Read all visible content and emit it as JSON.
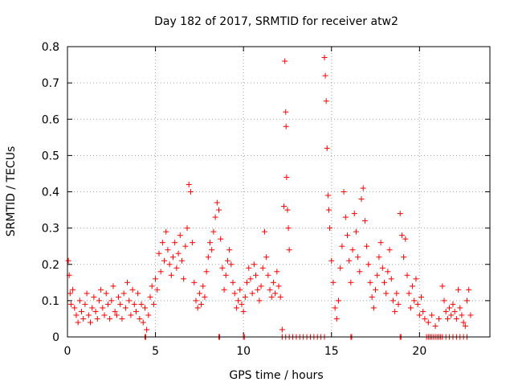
{
  "chart_data": {
    "type": "scatter",
    "title": "Day 182 of 2017, SRMTID for receiver atw2",
    "xlabel": "GPS time / hours",
    "ylabel": "SRMTID / TECUs",
    "xlim": [
      0,
      24
    ],
    "ylim": [
      0,
      0.8
    ],
    "xticks": [
      "0",
      "5",
      "10",
      "15",
      "20"
    ],
    "yticks": [
      "0",
      "0.1",
      "0.2",
      "0.3",
      "0.4",
      "0.5",
      "0.6",
      "0.7",
      "0.8"
    ],
    "grid": true,
    "marker": "+",
    "color": "#ff0000",
    "series": [
      {
        "name": "SRMTID",
        "points": [
          [
            0.05,
            0.21
          ],
          [
            0.1,
            0.17
          ],
          [
            0.15,
            0.12
          ],
          [
            0.2,
            0.09
          ],
          [
            0.3,
            0.13
          ],
          [
            0.4,
            0.08
          ],
          [
            0.5,
            0.06
          ],
          [
            0.6,
            0.04
          ],
          [
            0.7,
            0.1
          ],
          [
            0.8,
            0.07
          ],
          [
            0.9,
            0.05
          ],
          [
            1.0,
            0.09
          ],
          [
            1.1,
            0.12
          ],
          [
            1.2,
            0.06
          ],
          [
            1.3,
            0.04
          ],
          [
            1.4,
            0.08
          ],
          [
            1.5,
            0.11
          ],
          [
            1.6,
            0.07
          ],
          [
            1.7,
            0.05
          ],
          [
            1.8,
            0.1
          ],
          [
            1.9,
            0.13
          ],
          [
            2.0,
            0.08
          ],
          [
            2.1,
            0.06
          ],
          [
            2.2,
            0.12
          ],
          [
            2.3,
            0.09
          ],
          [
            2.4,
            0.05
          ],
          [
            2.5,
            0.1
          ],
          [
            2.6,
            0.14
          ],
          [
            2.7,
            0.07
          ],
          [
            2.8,
            0.06
          ],
          [
            2.9,
            0.11
          ],
          [
            3.0,
            0.09
          ],
          [
            3.1,
            0.05
          ],
          [
            3.2,
            0.12
          ],
          [
            3.3,
            0.08
          ],
          [
            3.4,
            0.15
          ],
          [
            3.5,
            0.1
          ],
          [
            3.6,
            0.06
          ],
          [
            3.7,
            0.13
          ],
          [
            3.8,
            0.09
          ],
          [
            3.9,
            0.07
          ],
          [
            4.0,
            0.12
          ],
          [
            4.1,
            0.05
          ],
          [
            4.2,
            0.09
          ],
          [
            4.3,
            0.04
          ],
          [
            4.4,
            0.08
          ],
          [
            4.5,
            0.02
          ],
          [
            4.6,
            0.06
          ],
          [
            4.7,
            0.11
          ],
          [
            4.8,
            0.14
          ],
          [
            4.9,
            0.09
          ],
          [
            5.0,
            0.16
          ],
          [
            5.1,
            0.13
          ],
          [
            5.2,
            0.23
          ],
          [
            5.3,
            0.18
          ],
          [
            5.4,
            0.26
          ],
          [
            5.5,
            0.21
          ],
          [
            5.6,
            0.29
          ],
          [
            5.7,
            0.24
          ],
          [
            5.8,
            0.2
          ],
          [
            5.9,
            0.17
          ],
          [
            6.0,
            0.22
          ],
          [
            6.1,
            0.26
          ],
          [
            6.2,
            0.19
          ],
          [
            6.3,
            0.23
          ],
          [
            6.4,
            0.28
          ],
          [
            6.5,
            0.21
          ],
          [
            6.6,
            0.16
          ],
          [
            6.7,
            0.25
          ],
          [
            6.8,
            0.3
          ],
          [
            6.9,
            0.42
          ],
          [
            7.0,
            0.4
          ],
          [
            7.1,
            0.26
          ],
          [
            7.2,
            0.15
          ],
          [
            7.3,
            0.1
          ],
          [
            7.4,
            0.08
          ],
          [
            7.5,
            0.12
          ],
          [
            7.6,
            0.09
          ],
          [
            7.7,
            0.14
          ],
          [
            7.8,
            0.11
          ],
          [
            7.9,
            0.18
          ],
          [
            8.0,
            0.22
          ],
          [
            8.1,
            0.26
          ],
          [
            8.2,
            0.24
          ],
          [
            8.3,
            0.29
          ],
          [
            8.4,
            0.33
          ],
          [
            8.5,
            0.37
          ],
          [
            8.6,
            0.35
          ],
          [
            8.7,
            0.27
          ],
          [
            8.8,
            0.19
          ],
          [
            8.9,
            0.13
          ],
          [
            9.0,
            0.17
          ],
          [
            9.1,
            0.21
          ],
          [
            9.2,
            0.24
          ],
          [
            9.3,
            0.2
          ],
          [
            9.4,
            0.15
          ],
          [
            9.5,
            0.12
          ],
          [
            9.6,
            0.08
          ],
          [
            9.7,
            0.1
          ],
          [
            9.8,
            0.13
          ],
          [
            9.9,
            0.09
          ],
          [
            10.0,
            0.07
          ],
          [
            10.1,
            0.11
          ],
          [
            10.2,
            0.15
          ],
          [
            10.3,
            0.19
          ],
          [
            10.4,
            0.16
          ],
          [
            10.5,
            0.12
          ],
          [
            10.6,
            0.2
          ],
          [
            10.7,
            0.17
          ],
          [
            10.8,
            0.13
          ],
          [
            10.9,
            0.1
          ],
          [
            11.0,
            0.14
          ],
          [
            11.1,
            0.19
          ],
          [
            11.2,
            0.29
          ],
          [
            11.3,
            0.22
          ],
          [
            11.4,
            0.17
          ],
          [
            11.5,
            0.13
          ],
          [
            11.6,
            0.11
          ],
          [
            11.7,
            0.15
          ],
          [
            11.8,
            0.12
          ],
          [
            11.9,
            0.18
          ],
          [
            12.0,
            0.14
          ],
          [
            12.1,
            0.11
          ],
          [
            12.2,
            0.02
          ],
          [
            12.3,
            0.36
          ],
          [
            12.35,
            0.76
          ],
          [
            12.4,
            0.62
          ],
          [
            12.42,
            0.58
          ],
          [
            12.45,
            0.44
          ],
          [
            12.5,
            0.35
          ],
          [
            12.55,
            0.3
          ],
          [
            12.6,
            0.24
          ],
          [
            14.6,
            0.77
          ],
          [
            14.65,
            0.72
          ],
          [
            14.7,
            0.65
          ],
          [
            14.75,
            0.52
          ],
          [
            14.8,
            0.39
          ],
          [
            14.85,
            0.35
          ],
          [
            14.9,
            0.3
          ],
          [
            15.0,
            0.21
          ],
          [
            15.1,
            0.15
          ],
          [
            15.2,
            0.08
          ],
          [
            15.3,
            0.05
          ],
          [
            15.4,
            0.1
          ],
          [
            15.5,
            0.19
          ],
          [
            15.6,
            0.25
          ],
          [
            15.7,
            0.4
          ],
          [
            15.8,
            0.33
          ],
          [
            15.9,
            0.28
          ],
          [
            16.0,
            0.21
          ],
          [
            16.1,
            0.15
          ],
          [
            16.2,
            0.24
          ],
          [
            16.3,
            0.34
          ],
          [
            16.4,
            0.29
          ],
          [
            16.5,
            0.22
          ],
          [
            16.6,
            0.18
          ],
          [
            16.7,
            0.38
          ],
          [
            16.8,
            0.41
          ],
          [
            16.9,
            0.32
          ],
          [
            17.0,
            0.25
          ],
          [
            17.1,
            0.2
          ],
          [
            17.2,
            0.15
          ],
          [
            17.3,
            0.11
          ],
          [
            17.4,
            0.08
          ],
          [
            17.5,
            0.13
          ],
          [
            17.6,
            0.17
          ],
          [
            17.7,
            0.22
          ],
          [
            17.8,
            0.26
          ],
          [
            17.9,
            0.19
          ],
          [
            18.0,
            0.15
          ],
          [
            18.1,
            0.12
          ],
          [
            18.2,
            0.18
          ],
          [
            18.3,
            0.24
          ],
          [
            18.4,
            0.16
          ],
          [
            18.5,
            0.1
          ],
          [
            18.6,
            0.07
          ],
          [
            18.7,
            0.12
          ],
          [
            18.8,
            0.09
          ],
          [
            18.9,
            0.34
          ],
          [
            19.0,
            0.28
          ],
          [
            19.1,
            0.22
          ],
          [
            19.2,
            0.27
          ],
          [
            19.3,
            0.17
          ],
          [
            19.4,
            0.12
          ],
          [
            19.5,
            0.08
          ],
          [
            19.6,
            0.14
          ],
          [
            19.7,
            0.1
          ],
          [
            19.8,
            0.16
          ],
          [
            19.9,
            0.09
          ],
          [
            20.0,
            0.06
          ],
          [
            20.1,
            0.11
          ],
          [
            20.2,
            0.07
          ],
          [
            20.3,
            0.05
          ],
          [
            20.5,
            0.04
          ],
          [
            20.7,
            0.06
          ],
          [
            20.9,
            0.03
          ],
          [
            21.1,
            0.05
          ],
          [
            21.3,
            0.14
          ],
          [
            21.4,
            0.1
          ],
          [
            21.5,
            0.07
          ],
          [
            21.6,
            0.05
          ],
          [
            21.7,
            0.08
          ],
          [
            21.8,
            0.06
          ],
          [
            21.9,
            0.09
          ],
          [
            22.0,
            0.07
          ],
          [
            22.1,
            0.05
          ],
          [
            22.2,
            0.13
          ],
          [
            22.3,
            0.08
          ],
          [
            22.4,
            0.06
          ],
          [
            22.5,
            0.04
          ],
          [
            22.6,
            0.03
          ],
          [
            22.7,
            0.1
          ],
          [
            22.8,
            0.13
          ],
          [
            22.9,
            0.06
          ],
          [
            4.4,
            0
          ],
          [
            4.45,
            0
          ],
          [
            8.6,
            0
          ],
          [
            8.65,
            0
          ],
          [
            10.0,
            0
          ],
          [
            10.05,
            0
          ],
          [
            12.2,
            0
          ],
          [
            12.4,
            0
          ],
          [
            12.6,
            0
          ],
          [
            12.8,
            0
          ],
          [
            13.0,
            0
          ],
          [
            13.2,
            0
          ],
          [
            13.4,
            0
          ],
          [
            13.6,
            0
          ],
          [
            13.8,
            0
          ],
          [
            14.0,
            0
          ],
          [
            14.2,
            0
          ],
          [
            14.4,
            0
          ],
          [
            14.6,
            0
          ],
          [
            16.1,
            0
          ],
          [
            16.15,
            0
          ],
          [
            18.9,
            0
          ],
          [
            18.95,
            0
          ],
          [
            20.4,
            0
          ],
          [
            20.5,
            0
          ],
          [
            20.6,
            0
          ],
          [
            20.7,
            0
          ],
          [
            20.8,
            0
          ],
          [
            20.9,
            0
          ],
          [
            21.0,
            0
          ],
          [
            21.1,
            0
          ],
          [
            21.2,
            0
          ],
          [
            21.3,
            0
          ],
          [
            21.5,
            0
          ],
          [
            21.7,
            0
          ],
          [
            21.9,
            0
          ],
          [
            22.1,
            0
          ],
          [
            22.3,
            0
          ],
          [
            22.5,
            0
          ],
          [
            22.7,
            0
          ]
        ]
      }
    ]
  }
}
